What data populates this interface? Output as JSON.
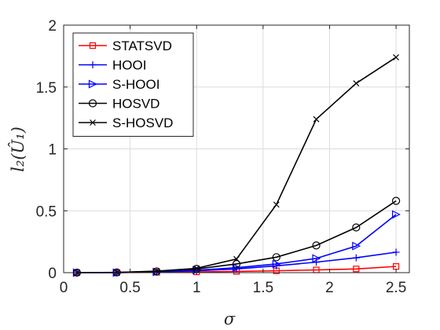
{
  "chart_data": {
    "type": "line",
    "xlabel": "σ",
    "ylabel": "l₂(Û₁)",
    "xlim": [
      0,
      2.6
    ],
    "ylim": [
      0,
      2
    ],
    "xticks": [
      "0",
      "0.5",
      "1",
      "1.5",
      "2",
      "2.5"
    ],
    "yticks": [
      "0",
      "0.5",
      "1",
      "1.5",
      "2"
    ],
    "grid": true,
    "legend_position": "top-left",
    "x": [
      0.1,
      0.4,
      0.7,
      1.0,
      1.3,
      1.6,
      1.9,
      2.2,
      2.5
    ],
    "series": [
      {
        "name": "STATSVD",
        "color": "#ff0000",
        "marker": "square",
        "values": [
          0.0,
          0.0,
          0.003,
          0.006,
          0.01,
          0.015,
          0.022,
          0.03,
          0.05
        ]
      },
      {
        "name": "HOOI",
        "color": "#0000ff",
        "marker": "plus",
        "values": [
          0.0,
          0.0,
          0.005,
          0.015,
          0.03,
          0.055,
          0.085,
          0.12,
          0.165
        ]
      },
      {
        "name": "S-HOOI",
        "color": "#0000ff",
        "marker": "triangle-right",
        "values": [
          0.0,
          0.0,
          0.006,
          0.02,
          0.04,
          0.07,
          0.115,
          0.215,
          0.47
        ]
      },
      {
        "name": "HOSVD",
        "color": "#000000",
        "marker": "circle",
        "values": [
          0.0,
          0.002,
          0.01,
          0.03,
          0.07,
          0.125,
          0.22,
          0.365,
          0.58
        ]
      },
      {
        "name": "S-HOSVD",
        "color": "#000000",
        "marker": "x",
        "values": [
          0.0,
          0.002,
          0.012,
          0.035,
          0.11,
          0.55,
          1.24,
          1.53,
          1.74
        ]
      }
    ]
  }
}
